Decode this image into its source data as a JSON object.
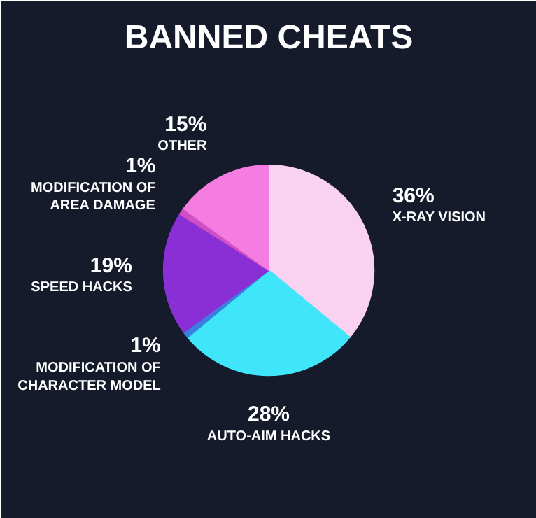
{
  "chart_data": {
    "type": "pie",
    "title": "BANNED CHEATS",
    "categories": [
      "X-RAY VISION",
      "AUTO-AIM HACKS",
      "MODIFICATION OF CHARACTER MODEL",
      "SPEED HACKS",
      "MODIFICATION OF AREA DAMAGE",
      "OTHER"
    ],
    "values": [
      36,
      28,
      1,
      19,
      1,
      15
    ],
    "value_labels": [
      "36%",
      "28%",
      "1%",
      "19%",
      "1%",
      "15%"
    ],
    "colors": [
      "#f8d2f0",
      "#3fe6fa",
      "#3a7fe0",
      "#8a2fd6",
      "#d04fc4",
      "#f57de2"
    ]
  }
}
